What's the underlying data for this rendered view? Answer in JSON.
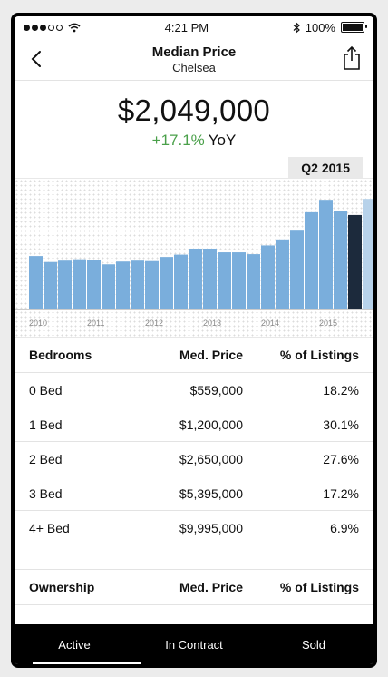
{
  "status_bar": {
    "time": "4:21 PM",
    "battery": "100%"
  },
  "nav": {
    "title": "Median Price",
    "subtitle": "Chelsea"
  },
  "summary": {
    "price": "$2,049,000",
    "change": "+17.1%",
    "change_label": "YoY",
    "period": "Q2 2015"
  },
  "colors": {
    "bar": "#7aaedc",
    "selected_bar": "#1c2a3c",
    "future_bar": "#b7d2ea",
    "positive": "#4aa04a"
  },
  "chart_data": {
    "type": "bar",
    "x_tick_labels": [
      "2010",
      "2011",
      "2012",
      "2013",
      "2014",
      "2015"
    ],
    "values": [
      1.16,
      1.03,
      1.06,
      1.09,
      1.07,
      0.98,
      1.04,
      1.06,
      1.05,
      1.14,
      1.19,
      1.32,
      1.32,
      1.24,
      1.24,
      1.2,
      1.39,
      1.52,
      1.73,
      2.11,
      2.38,
      2.14,
      2.05,
      2.4
    ],
    "selected_index": 22,
    "ylim": [
      0,
      2.6
    ],
    "grid": false
  },
  "bedrooms": {
    "headers": [
      "Bedrooms",
      "Med. Price",
      "% of Listings"
    ],
    "rows": [
      [
        "0 Bed",
        "$559,000",
        "18.2%"
      ],
      [
        "1 Bed",
        "$1,200,000",
        "30.1%"
      ],
      [
        "2 Bed",
        "$2,650,000",
        "27.6%"
      ],
      [
        "3 Bed",
        "$5,395,000",
        "17.2%"
      ],
      [
        "4+ Bed",
        "$9,995,000",
        "6.9%"
      ]
    ]
  },
  "ownership": {
    "headers": [
      "Ownership",
      "Med. Price",
      "% of Listings"
    ]
  },
  "tabs": [
    "Active",
    "In Contract",
    "Sold"
  ]
}
